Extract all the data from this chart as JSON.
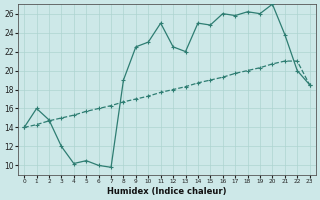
{
  "xlabel": "Humidex (Indice chaleur)",
  "xlim": [
    -0.5,
    23.5
  ],
  "ylim": [
    9.0,
    27.0
  ],
  "xticks": [
    0,
    1,
    2,
    3,
    4,
    5,
    6,
    7,
    8,
    9,
    10,
    11,
    12,
    13,
    14,
    15,
    16,
    17,
    18,
    19,
    20,
    21,
    22,
    23
  ],
  "yticks": [
    10,
    12,
    14,
    16,
    18,
    20,
    22,
    24,
    26
  ],
  "line_color": "#2e7d72",
  "bg_color": "#cde8e8",
  "grid_color": "#aed4d0",
  "upper_x": [
    0,
    1,
    2,
    3,
    4,
    5,
    6,
    7,
    8,
    9,
    10,
    11,
    12,
    13,
    14,
    15,
    16,
    17,
    18,
    19,
    20,
    21,
    22,
    23
  ],
  "upper_y": [
    14.0,
    16.0,
    14.8,
    12.0,
    10.2,
    10.5,
    10.0,
    9.8,
    19.0,
    22.5,
    23.0,
    25.0,
    22.5,
    22.0,
    25.0,
    24.8,
    26.0,
    25.8,
    26.2,
    26.0,
    27.0,
    23.8,
    20.0,
    18.5
  ],
  "lower_x": [
    0,
    1,
    2,
    3,
    4,
    5,
    6,
    7,
    8,
    9,
    10,
    11,
    12,
    13,
    14,
    15,
    16,
    17,
    18,
    19,
    20,
    21,
    22,
    23
  ],
  "lower_y": [
    14.0,
    14.3,
    14.7,
    15.0,
    15.3,
    15.7,
    16.0,
    16.3,
    16.7,
    17.0,
    17.3,
    17.7,
    18.0,
    18.3,
    18.7,
    19.0,
    19.3,
    19.7,
    20.0,
    20.3,
    20.7,
    21.0,
    21.0,
    18.5
  ]
}
